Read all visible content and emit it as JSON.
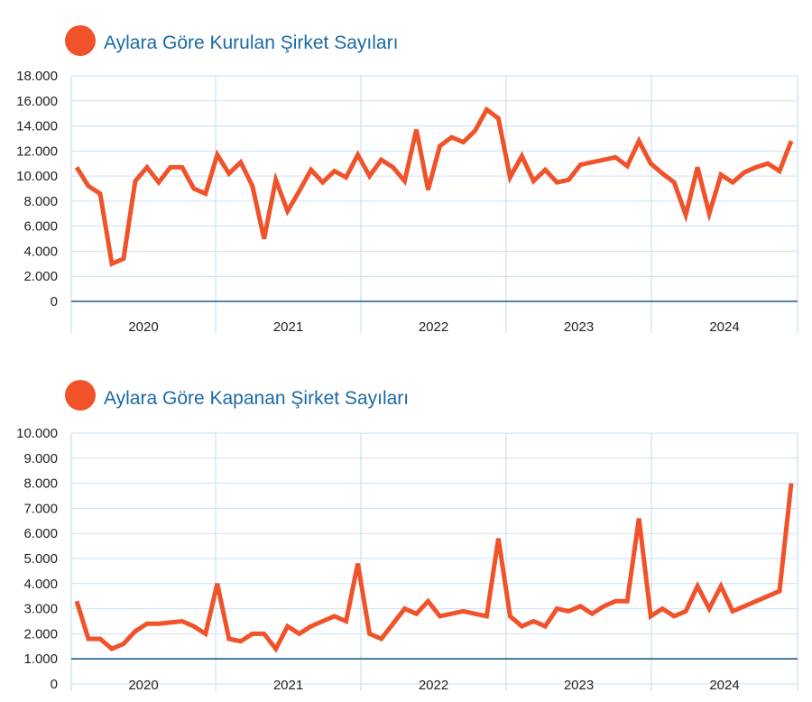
{
  "colors": {
    "line": "#f0522a",
    "dot": "#f0522a",
    "grid": "#c9e1f3",
    "baseline": "#1a5a8a",
    "title": "#1a6aa6",
    "text": "#222222"
  },
  "chart_data": [
    {
      "type": "line",
      "title": "Aylara Göre Kurulan Şirket Sayıları",
      "ylim": [
        0,
        18000
      ],
      "ytick_labels": [
        "0",
        "2.000",
        "4.000",
        "6.000",
        "8.000",
        "10.000",
        "12.000",
        "14.000",
        "16.000",
        "18.000"
      ],
      "year_labels": [
        "2020",
        "2021",
        "2022",
        "2023",
        "2024"
      ],
      "grid": true,
      "series": [
        {
          "values": [
            10700,
            9200,
            8600,
            3000,
            3400,
            9600,
            10700,
            9500,
            10700,
            10700,
            9000,
            8600,
            11700,
            10200,
            11100,
            9200,
            5000,
            9700,
            7200,
            8800,
            10500,
            9500,
            10400,
            9900,
            11700,
            10000,
            11300,
            10700,
            9600,
            13700,
            8900,
            12400,
            13100,
            12700,
            13600,
            15300,
            14600,
            9900,
            11600,
            9600,
            10500,
            9500,
            9700,
            10900,
            11100,
            11300,
            11500,
            10800,
            12800,
            11000,
            10200,
            9500,
            6900,
            10700,
            7000,
            10100,
            9500,
            10300,
            10700,
            11000,
            10400,
            12800
          ]
        }
      ]
    },
    {
      "type": "line",
      "title": "Aylara Göre Kapanan Şirket Sayıları",
      "ylim": [
        0,
        10000
      ],
      "ytick_labels": [
        "0",
        "1.000",
        "2.000",
        "3.000",
        "4.000",
        "5.000",
        "6.000",
        "7.000",
        "8.000",
        "9.000",
        "10.000"
      ],
      "year_labels": [
        "2020",
        "2021",
        "2022",
        "2023",
        "2024"
      ],
      "grid": true,
      "series": [
        {
          "values": [
            3300,
            1800,
            1800,
            1400,
            1600,
            2100,
            2400,
            2400,
            2450,
            2500,
            2300,
            2000,
            4000,
            1800,
            1700,
            2000,
            2000,
            1400,
            2300,
            2000,
            2300,
            2500,
            2700,
            2500,
            4800,
            2000,
            1800,
            2400,
            3000,
            2800,
            3300,
            2700,
            2800,
            2900,
            2800,
            2700,
            5800,
            2700,
            2300,
            2500,
            2300,
            3000,
            2900,
            3100,
            2800,
            3100,
            3300,
            3300,
            6600,
            2700,
            3000,
            2700,
            2900,
            3900,
            3000,
            3900,
            2900,
            3100,
            3300,
            3500,
            3700,
            8000
          ]
        }
      ]
    }
  ]
}
